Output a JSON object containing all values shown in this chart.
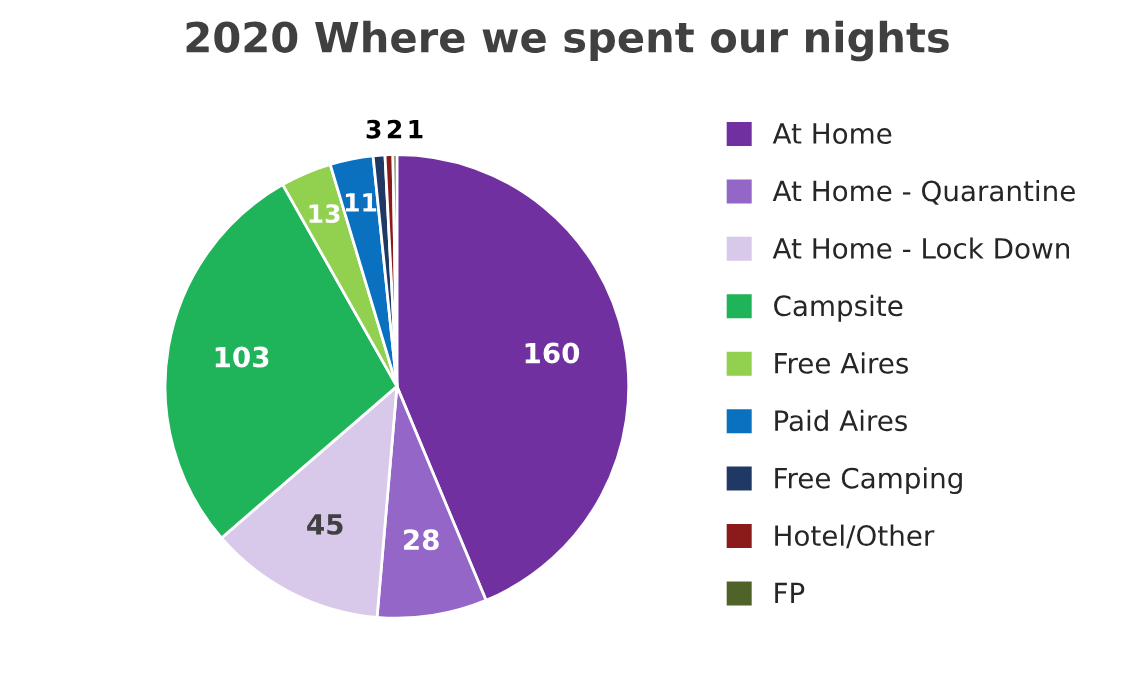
{
  "chart_data": {
    "type": "pie",
    "title": "2020 Where we spent our nights",
    "categories": [
      "At Home",
      "At Home - Quarantine",
      "At Home - Lock Down",
      "Campsite",
      "Free Aires",
      "Paid Aires",
      "Free Camping",
      "Hotel/Other",
      "FP"
    ],
    "values": [
      160,
      28,
      45,
      103,
      13,
      11,
      3,
      2,
      1
    ],
    "colors": [
      "#7030a0",
      "#9466c8",
      "#d8c8ea",
      "#1fb35a",
      "#92d050",
      "#0a70c0",
      "#1f3864",
      "#8b1a1a",
      "#4f6228"
    ],
    "data_labels": true,
    "legend": "right"
  }
}
